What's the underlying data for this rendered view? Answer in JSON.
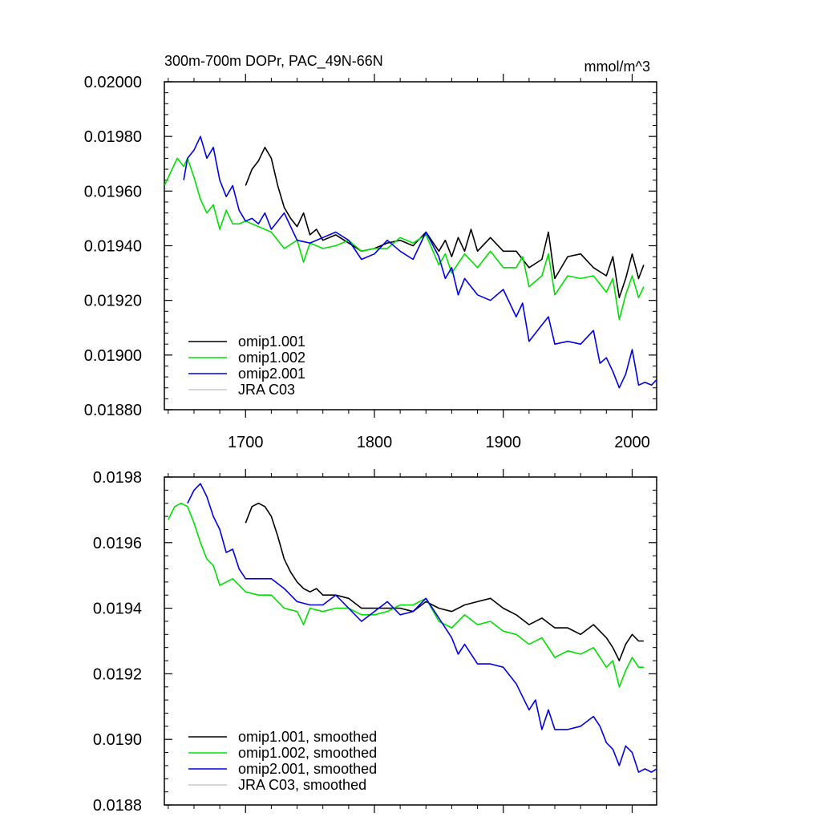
{
  "chart_data": [
    {
      "type": "line",
      "title": "300m-700m DOPr, PAC_49N-66N",
      "units": "mmol/m^3",
      "xlabel": "",
      "ylabel": "",
      "xlim": [
        1637,
        2019
      ],
      "ylim": [
        0.0188,
        0.02
      ],
      "x_ticks": [
        1700,
        1800,
        1900,
        2000
      ],
      "x_tick_labels": [
        "1700",
        "1800",
        "1900",
        "2000"
      ],
      "y_ticks": [
        0.0188,
        0.019,
        0.0192,
        0.0194,
        0.0196,
        0.0198,
        0.02
      ],
      "y_tick_labels": [
        "0.01880",
        "0.01900",
        "0.01920",
        "0.01940",
        "0.01960",
        "0.01980",
        "0.02000"
      ],
      "legend_position": "bottom-left",
      "series": [
        {
          "name": "omip1.001",
          "color": "#000000",
          "x": [
            1700,
            1705,
            1710,
            1715,
            1720,
            1725,
            1730,
            1735,
            1740,
            1745,
            1750,
            1755,
            1760,
            1770,
            1780,
            1790,
            1800,
            1810,
            1820,
            1830,
            1840,
            1850,
            1855,
            1860,
            1865,
            1870,
            1875,
            1880,
            1890,
            1900,
            1910,
            1920,
            1930,
            1935,
            1940,
            1950,
            1960,
            1970,
            1980,
            1985,
            1990,
            1995,
            2000,
            2005,
            2009
          ],
          "y": [
            0.01962,
            0.01968,
            0.01971,
            0.01976,
            0.01972,
            0.01962,
            0.01954,
            0.0195,
            0.01947,
            0.01952,
            0.01944,
            0.01946,
            0.01942,
            0.01944,
            0.01941,
            0.01938,
            0.01939,
            0.01941,
            0.01942,
            0.0194,
            0.01945,
            0.01938,
            0.01942,
            0.01936,
            0.01943,
            0.01938,
            0.01946,
            0.01938,
            0.01943,
            0.01938,
            0.01938,
            0.01932,
            0.01935,
            0.01945,
            0.01928,
            0.01936,
            0.01937,
            0.01932,
            0.01929,
            0.01936,
            0.01921,
            0.01928,
            0.01937,
            0.01928,
            0.01933
          ]
        },
        {
          "name": "omip1.002",
          "color": "#00e000",
          "x": [
            1637,
            1642,
            1647,
            1652,
            1655,
            1660,
            1665,
            1670,
            1675,
            1680,
            1685,
            1690,
            1695,
            1700,
            1710,
            1720,
            1730,
            1740,
            1745,
            1750,
            1760,
            1770,
            1780,
            1790,
            1800,
            1810,
            1820,
            1830,
            1840,
            1850,
            1855,
            1860,
            1870,
            1880,
            1890,
            1900,
            1910,
            1915,
            1920,
            1930,
            1935,
            1940,
            1950,
            1960,
            1970,
            1980,
            1985,
            1990,
            1995,
            2000,
            2005,
            2009
          ],
          "y": [
            0.01962,
            0.01967,
            0.01972,
            0.01969,
            0.01972,
            0.01965,
            0.01957,
            0.01952,
            0.01955,
            0.01946,
            0.01953,
            0.01948,
            0.01948,
            0.01949,
            0.01947,
            0.01945,
            0.01939,
            0.01942,
            0.01934,
            0.01941,
            0.01939,
            0.0194,
            0.01942,
            0.01938,
            0.01939,
            0.01939,
            0.01943,
            0.01941,
            0.01944,
            0.01933,
            0.01937,
            0.0193,
            0.01937,
            0.01932,
            0.01938,
            0.01932,
            0.01932,
            0.01936,
            0.01925,
            0.01929,
            0.01937,
            0.01922,
            0.01929,
            0.01928,
            0.01929,
            0.01923,
            0.01928,
            0.01913,
            0.01922,
            0.01929,
            0.01921,
            0.01925
          ]
        },
        {
          "name": "omip2.001",
          "color": "#0000e6",
          "x": [
            1652,
            1655,
            1660,
            1665,
            1670,
            1675,
            1680,
            1685,
            1690,
            1695,
            1700,
            1705,
            1710,
            1715,
            1720,
            1730,
            1740,
            1750,
            1760,
            1770,
            1780,
            1790,
            1800,
            1810,
            1820,
            1830,
            1840,
            1850,
            1855,
            1860,
            1865,
            1870,
            1880,
            1890,
            1900,
            1910,
            1915,
            1920,
            1930,
            1935,
            1940,
            1950,
            1960,
            1970,
            1975,
            1980,
            1985,
            1990,
            1995,
            2000,
            2005,
            2010,
            2015,
            2019
          ],
          "y": [
            0.01964,
            0.01972,
            0.01975,
            0.0198,
            0.01972,
            0.01976,
            0.01964,
            0.01958,
            0.01962,
            0.01953,
            0.01949,
            0.0195,
            0.01948,
            0.01952,
            0.01946,
            0.01952,
            0.01942,
            0.01941,
            0.01943,
            0.01945,
            0.01942,
            0.01935,
            0.01937,
            0.01942,
            0.01938,
            0.01935,
            0.01945,
            0.01936,
            0.01928,
            0.01932,
            0.01922,
            0.01928,
            0.01922,
            0.0192,
            0.01924,
            0.01914,
            0.01919,
            0.01905,
            0.01911,
            0.01914,
            0.01904,
            0.01905,
            0.01904,
            0.01909,
            0.01897,
            0.01899,
            0.01894,
            0.01888,
            0.01893,
            0.01902,
            0.01889,
            0.0189,
            0.01889,
            0.01891
          ]
        },
        {
          "name": "JRA C03",
          "color": "#c8c8c8",
          "x": [],
          "y": []
        }
      ]
    },
    {
      "type": "line",
      "title": "",
      "xlabel": "",
      "ylabel": "",
      "xlim": [
        1637,
        2019
      ],
      "ylim": [
        0.0188,
        0.0198
      ],
      "x_ticks": [
        1700,
        1800,
        1900,
        2000
      ],
      "x_tick_labels": [],
      "y_ticks": [
        0.0188,
        0.019,
        0.0192,
        0.0194,
        0.0196,
        0.0198
      ],
      "y_tick_labels": [
        "0.0188",
        "0.0190",
        "0.0192",
        "0.0194",
        "0.0196",
        "0.0198"
      ],
      "legend_position": "bottom-left",
      "series": [
        {
          "name": "omip1.001, smoothed",
          "color": "#000000",
          "x": [
            1700,
            1705,
            1710,
            1715,
            1720,
            1725,
            1730,
            1735,
            1740,
            1745,
            1750,
            1755,
            1760,
            1770,
            1780,
            1790,
            1800,
            1810,
            1820,
            1830,
            1840,
            1850,
            1860,
            1870,
            1880,
            1890,
            1900,
            1910,
            1920,
            1930,
            1940,
            1950,
            1960,
            1970,
            1980,
            1985,
            1990,
            1995,
            2000,
            2005,
            2009
          ],
          "y": [
            0.01966,
            0.01971,
            0.01972,
            0.01971,
            0.01968,
            0.01962,
            0.01955,
            0.01951,
            0.01948,
            0.01946,
            0.01945,
            0.01946,
            0.01944,
            0.01944,
            0.01943,
            0.0194,
            0.0194,
            0.0194,
            0.0194,
            0.01939,
            0.01942,
            0.0194,
            0.01939,
            0.01941,
            0.01942,
            0.01943,
            0.0194,
            0.01938,
            0.01935,
            0.01937,
            0.01934,
            0.01934,
            0.01932,
            0.01935,
            0.01931,
            0.01928,
            0.01924,
            0.01929,
            0.01932,
            0.0193,
            0.0193
          ]
        },
        {
          "name": "omip1.002, smoothed",
          "color": "#00e000",
          "x": [
            1640,
            1645,
            1650,
            1655,
            1660,
            1665,
            1670,
            1675,
            1680,
            1690,
            1700,
            1710,
            1720,
            1730,
            1740,
            1745,
            1750,
            1760,
            1770,
            1780,
            1790,
            1800,
            1810,
            1820,
            1830,
            1840,
            1850,
            1860,
            1870,
            1880,
            1890,
            1900,
            1910,
            1920,
            1930,
            1940,
            1950,
            1960,
            1970,
            1980,
            1985,
            1990,
            1995,
            2000,
            2005,
            2009
          ],
          "y": [
            0.01967,
            0.01971,
            0.01972,
            0.01971,
            0.01966,
            0.0196,
            0.01955,
            0.01953,
            0.01947,
            0.01949,
            0.01945,
            0.01944,
            0.01944,
            0.0194,
            0.01939,
            0.01935,
            0.0194,
            0.01939,
            0.0194,
            0.0194,
            0.01938,
            0.01938,
            0.01939,
            0.01941,
            0.01941,
            0.01943,
            0.01936,
            0.01934,
            0.01938,
            0.01935,
            0.01936,
            0.01933,
            0.01932,
            0.01929,
            0.01931,
            0.01925,
            0.01927,
            0.01926,
            0.01928,
            0.01922,
            0.01924,
            0.01916,
            0.01921,
            0.01925,
            0.01922,
            0.01922
          ]
        },
        {
          "name": "omip2.001, smoothed",
          "color": "#0000e6",
          "x": [
            1655,
            1660,
            1665,
            1670,
            1675,
            1680,
            1685,
            1690,
            1695,
            1700,
            1710,
            1720,
            1730,
            1740,
            1750,
            1760,
            1770,
            1780,
            1790,
            1800,
            1810,
            1820,
            1830,
            1840,
            1850,
            1855,
            1860,
            1865,
            1870,
            1880,
            1890,
            1900,
            1910,
            1920,
            1925,
            1930,
            1935,
            1940,
            1950,
            1960,
            1970,
            1975,
            1980,
            1985,
            1990,
            1995,
            2000,
            2005,
            2010,
            2015,
            2019
          ],
          "y": [
            0.01972,
            0.01976,
            0.01978,
            0.01974,
            0.01968,
            0.01964,
            0.01957,
            0.01958,
            0.01952,
            0.01949,
            0.01949,
            0.01949,
            0.01946,
            0.01942,
            0.01941,
            0.01941,
            0.01944,
            0.0194,
            0.01936,
            0.01939,
            0.01942,
            0.01938,
            0.01939,
            0.01943,
            0.01937,
            0.01934,
            0.01931,
            0.01926,
            0.01929,
            0.01923,
            0.01923,
            0.01922,
            0.01917,
            0.01909,
            0.01912,
            0.01903,
            0.01909,
            0.01903,
            0.01903,
            0.01904,
            0.01907,
            0.01904,
            0.01899,
            0.01897,
            0.01892,
            0.01898,
            0.01896,
            0.0189,
            0.01891,
            0.0189,
            0.01891
          ]
        },
        {
          "name": "JRA C03, smoothed",
          "color": "#c8c8c8",
          "x": [],
          "y": []
        }
      ]
    }
  ]
}
